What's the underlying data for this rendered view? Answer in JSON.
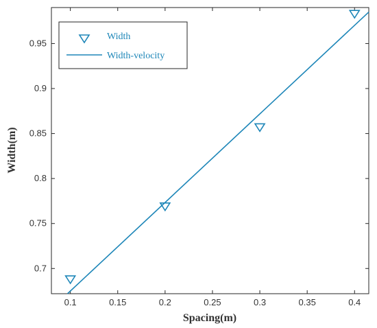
{
  "chart_data": {
    "type": "scatter",
    "title": "",
    "xlabel": "Spacing(m)",
    "ylabel": "Width(m)",
    "xlim": [
      0.08,
      0.415
    ],
    "ylim": [
      0.672,
      0.99
    ],
    "xticks": [
      0.1,
      0.15,
      0.2,
      0.25,
      0.3,
      0.35,
      0.4
    ],
    "xtick_labels": [
      "0.1",
      "0.15",
      "0.2",
      "0.25",
      "0.3",
      "0.35",
      "0.4"
    ],
    "yticks": [
      0.7,
      0.75,
      0.8,
      0.85,
      0.9,
      0.95
    ],
    "ytick_labels": [
      "0.7",
      "0.75",
      "0.8",
      "0.85",
      "0.9",
      "0.95"
    ],
    "grid": false,
    "legend_position": "top-left",
    "series": [
      {
        "name": "Width",
        "kind": "markers",
        "marker": "triangle-down",
        "color": "#1d86b8",
        "x": [
          0.1,
          0.2,
          0.3,
          0.4
        ],
        "y": [
          0.688,
          0.769,
          0.857,
          0.983
        ]
      },
      {
        "name": "Width-velocity",
        "kind": "line",
        "color": "#1d86b8",
        "x": [
          0.097,
          0.415
        ],
        "y": [
          0.672,
          0.985
        ]
      }
    ]
  }
}
